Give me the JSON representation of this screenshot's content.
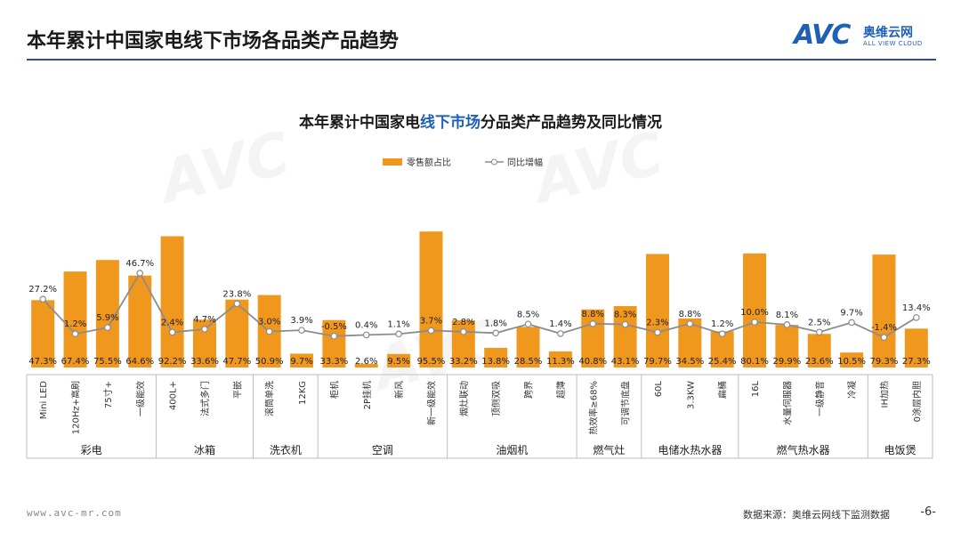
{
  "header": {
    "title": "本年累计中国家电线下市场各品类产品趋势"
  },
  "logo": {
    "mark": "AVC",
    "cn": "奥维云网",
    "en": "ALL VIEW CLOUD"
  },
  "footer": {
    "url": "www.avc-mr.com",
    "source": "数据来源：奥维云网线下监测数据",
    "page": "-6-"
  },
  "colors": {
    "bar": "#F0971E",
    "line": "#8C8C8C",
    "accent": "#1E5FB8",
    "rule": "#2C4F8C"
  },
  "chart_data": {
    "type": "bar",
    "title_parts": [
      "本年累计中国家电",
      "线下市场",
      "分品类产品趋势及同比情况"
    ],
    "legend": [
      "零售额占比",
      "同比增幅"
    ],
    "legend_position": "top-center",
    "categories": [
      "Mini LED",
      "120Hz+高刷",
      "75寸+",
      "一级能效",
      "400L+",
      "法式多门",
      "平嵌",
      "滚筒单洗",
      "12KG",
      "柜机",
      "2P挂机",
      "新风",
      "新一级能效",
      "烟灶联动",
      "顶侧双吸",
      "跨界",
      "超薄",
      "热效率≥68%",
      "可调节底盘",
      "60L",
      "3.3KW",
      "扁桶",
      "16L",
      "水量伺服器",
      "一级静音",
      "冷凝",
      "IH加热",
      "0涂层内胆"
    ],
    "groups": [
      {
        "name": "彩电",
        "count": 4
      },
      {
        "name": "冰箱",
        "count": 3
      },
      {
        "name": "洗衣机",
        "count": 2
      },
      {
        "name": "空调",
        "count": 4
      },
      {
        "name": "油烟机",
        "count": 4
      },
      {
        "name": "燃气灶",
        "count": 2
      },
      {
        "name": "电储水热水器",
        "count": 3
      },
      {
        "name": "燃气热水器",
        "count": 4
      },
      {
        "name": "电饭煲",
        "count": 2
      }
    ],
    "series": [
      {
        "name": "零售额占比",
        "type": "bar",
        "values": [
          47.3,
          67.4,
          75.5,
          64.6,
          92.2,
          33.6,
          47.7,
          50.9,
          9.7,
          33.3,
          2.6,
          9.5,
          95.5,
          33.2,
          13.8,
          28.5,
          11.3,
          40.8,
          43.1,
          79.7,
          34.5,
          25.4,
          80.1,
          29.9,
          23.6,
          10.5,
          79.3,
          27.3
        ],
        "labels": [
          "47.3%",
          "67.4%",
          "75.5%",
          "64.6%",
          "92.2%",
          "33.6%",
          "47.7%",
          "50.9%",
          "9.7%",
          "33.3%",
          "2.6%",
          "9.5%",
          "95.5%",
          "33.2%",
          "13.8%",
          "28.5%",
          "11.3%",
          "40.8%",
          "43.1%",
          "79.7%",
          "34.5%",
          "25.4%",
          "80.1%",
          "29.9%",
          "23.6%",
          "10.5%",
          "79.3%",
          "27.3%"
        ]
      },
      {
        "name": "同比增幅",
        "type": "line",
        "values": [
          27.2,
          1.2,
          5.9,
          46.7,
          2.4,
          4.7,
          23.8,
          3.0,
          3.9,
          -0.5,
          0.4,
          1.1,
          3.7,
          2.8,
          1.8,
          8.5,
          1.4,
          8.8,
          8.3,
          2.3,
          8.8,
          1.2,
          10.0,
          8.1,
          2.5,
          9.7,
          -1.4,
          13.4
        ],
        "labels": [
          "27.2%",
          "1.2%",
          "5.9%",
          "46.7%",
          "2.4%",
          "4.7%",
          "23.8%",
          "3.0%",
          "3.9%",
          "-0.5%",
          "0.4%",
          "1.1%",
          "3.7%",
          "2.8%",
          "1.8%",
          "8.5%",
          "1.4%",
          "8.8%",
          "8.3%",
          "2.3%",
          "8.8%",
          "1.2%",
          "10.0%",
          "8.1%",
          "2.5%",
          "9.7%",
          "-1.4%",
          "13.4%"
        ]
      }
    ],
    "grid": false
  }
}
